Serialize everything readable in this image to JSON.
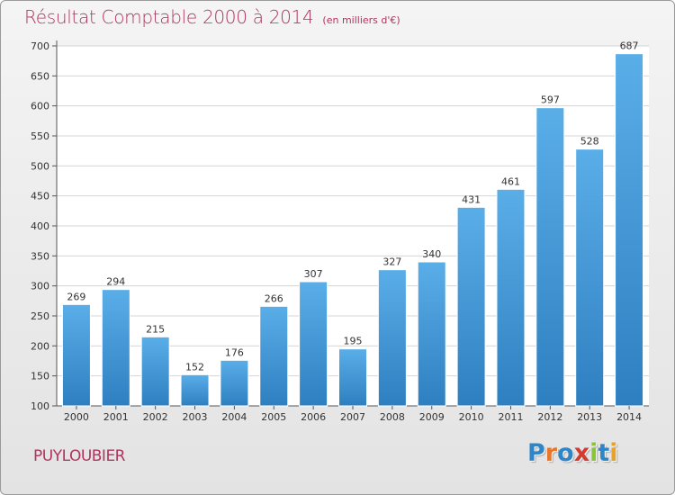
{
  "header": {
    "title": "Résultat Comptable 2000 à 2014",
    "subtitle": "(en milliers d'€)"
  },
  "footer": {
    "town": "PUYLOUBIER",
    "brand": "Proxiti"
  },
  "colors": {
    "title": "#b0345e",
    "bar_top": "#5aaee8",
    "bar_bottom": "#2e7fc0",
    "grid": "#d4d4d4",
    "brand_letters": [
      "#2e86c8",
      "#e8762c",
      "#2e86c8",
      "#d43a2f",
      "#8ac43c",
      "#2e86c8",
      "#e8a22c"
    ]
  },
  "chart_data": {
    "type": "bar",
    "title": "Résultat Comptable 2000 à 2014",
    "subtitle": "(en milliers d'€)",
    "categories": [
      "2000",
      "2001",
      "2002",
      "2003",
      "2004",
      "2005",
      "2006",
      "2007",
      "2008",
      "2009",
      "2010",
      "2011",
      "2012",
      "2013",
      "2014"
    ],
    "values": [
      269,
      294,
      215,
      152,
      176,
      266,
      307,
      195,
      327,
      340,
      431,
      461,
      597,
      528,
      687
    ],
    "xlabel": "",
    "ylabel": "",
    "ylim": [
      100,
      700
    ],
    "yticks": [
      100,
      150,
      200,
      250,
      300,
      350,
      400,
      450,
      500,
      550,
      600,
      650,
      700
    ],
    "grid": true,
    "data_labels": true
  }
}
